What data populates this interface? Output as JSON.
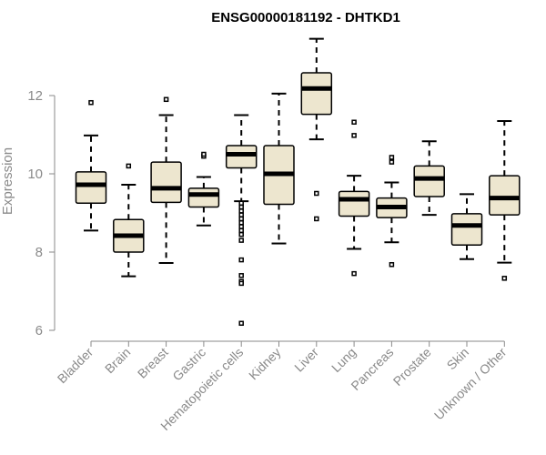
{
  "chart_data": {
    "type": "box",
    "title": "ENSG00000181192 - DHTKD1",
    "ylabel": "Expression",
    "ylim": [
      6,
      13.5
    ],
    "yticks": [
      6,
      8,
      10,
      12
    ],
    "legend": "none",
    "grid": false,
    "colors": {
      "box_fill": "#ede6cf",
      "box_stroke": "#000000",
      "axis": "#8a8a8a"
    },
    "categories": [
      "Bladder",
      "Brain",
      "Breast",
      "Gastric",
      "Hematopoietic cells",
      "Kidney",
      "Liver",
      "Lung",
      "Pancreas",
      "Prostate",
      "Skin",
      "Unknown / Other"
    ],
    "boxes": [
      {
        "category": "Bladder",
        "whisker_low": 8.55,
        "q1": 9.25,
        "median": 9.72,
        "q3": 10.05,
        "whisker_high": 10.98,
        "outliers": [
          11.82
        ]
      },
      {
        "category": "Brain",
        "whisker_low": 7.38,
        "q1": 8.0,
        "median": 8.42,
        "q3": 8.83,
        "whisker_high": 9.72,
        "outliers": [
          10.2
        ]
      },
      {
        "category": "Breast",
        "whisker_low": 7.72,
        "q1": 9.27,
        "median": 9.63,
        "q3": 10.3,
        "whisker_high": 11.5,
        "outliers": [
          11.9
        ]
      },
      {
        "category": "Gastric",
        "whisker_low": 8.68,
        "q1": 9.15,
        "median": 9.47,
        "q3": 9.63,
        "whisker_high": 9.92,
        "outliers": [
          10.45,
          10.5
        ]
      },
      {
        "category": "Hematopoietic cells",
        "whisker_low": 9.3,
        "q1": 10.15,
        "median": 10.5,
        "q3": 10.72,
        "whisker_high": 11.5,
        "outliers": [
          9.25,
          9.15,
          9.05,
          8.95,
          8.85,
          8.75,
          8.65,
          8.55,
          8.45,
          8.3,
          7.8,
          7.4,
          7.25,
          7.2,
          6.18
        ]
      },
      {
        "category": "Kidney",
        "whisker_low": 8.22,
        "q1": 9.22,
        "median": 10.0,
        "q3": 10.72,
        "whisker_high": 12.05,
        "outliers": []
      },
      {
        "category": "Liver",
        "whisker_low": 10.88,
        "q1": 11.52,
        "median": 12.18,
        "q3": 12.58,
        "whisker_high": 13.45,
        "outliers": [
          9.5,
          8.85
        ]
      },
      {
        "category": "Lung",
        "whisker_low": 8.08,
        "q1": 8.92,
        "median": 9.35,
        "q3": 9.55,
        "whisker_high": 9.95,
        "outliers": [
          11.32,
          10.98,
          7.45
        ]
      },
      {
        "category": "Pancreas",
        "whisker_low": 8.25,
        "q1": 8.88,
        "median": 9.15,
        "q3": 9.38,
        "whisker_high": 9.78,
        "outliers": [
          10.42,
          10.3,
          7.68
        ]
      },
      {
        "category": "Prostate",
        "whisker_low": 8.95,
        "q1": 9.42,
        "median": 9.88,
        "q3": 10.2,
        "whisker_high": 10.83,
        "outliers": []
      },
      {
        "category": "Skin",
        "whisker_low": 7.82,
        "q1": 8.18,
        "median": 8.68,
        "q3": 8.98,
        "whisker_high": 9.48,
        "outliers": []
      },
      {
        "category": "Unknown / Other",
        "whisker_low": 7.73,
        "q1": 8.95,
        "median": 9.38,
        "q3": 9.95,
        "whisker_high": 11.35,
        "outliers": [
          7.33
        ]
      }
    ]
  }
}
